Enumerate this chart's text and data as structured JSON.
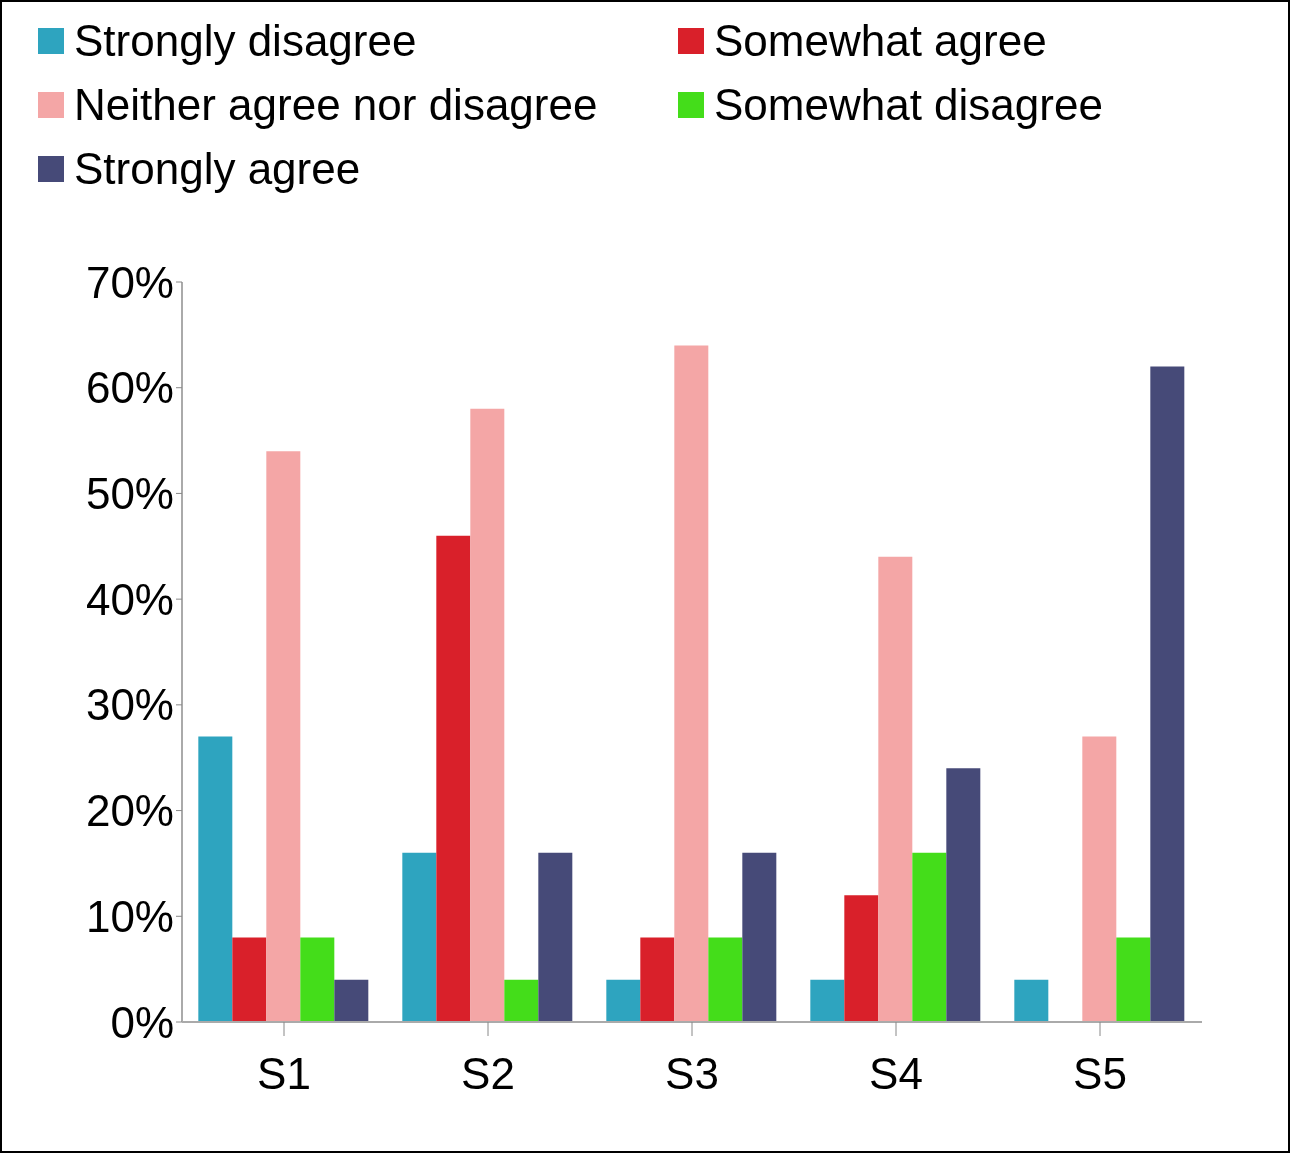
{
  "chart_data": {
    "type": "bar",
    "categories": [
      "S1",
      "S2",
      "S3",
      "S4",
      "S5"
    ],
    "series": [
      {
        "name": "Strongly disagree",
        "color": "#2ea4bf",
        "values": [
          27,
          16,
          4,
          4,
          4
        ]
      },
      {
        "name": "Somewhat agree",
        "color": "#d9202a",
        "values": [
          8,
          46,
          8,
          12,
          0
        ]
      },
      {
        "name": "Neither agree nor disagree",
        "color": "#f4a6a6",
        "values": [
          54,
          58,
          64,
          44,
          27
        ]
      },
      {
        "name": "Somewhat disagree",
        "color": "#44dd1a",
        "values": [
          8,
          4,
          8,
          16,
          8
        ]
      },
      {
        "name": "Strongly agree",
        "color": "#464a78",
        "values": [
          4,
          16,
          16,
          24,
          62
        ]
      }
    ],
    "ylim": [
      0,
      70
    ],
    "yticks": [
      {
        "value": 0,
        "label": "0%"
      },
      {
        "value": 10,
        "label": "10%"
      },
      {
        "value": 20,
        "label": "20%"
      },
      {
        "value": 30,
        "label": "30%"
      },
      {
        "value": 40,
        "label": "40%"
      },
      {
        "value": 50,
        "label": "50%"
      },
      {
        "value": 60,
        "label": "60%"
      },
      {
        "value": 70,
        "label": "70%"
      }
    ],
    "grid": false,
    "legend": "top"
  }
}
